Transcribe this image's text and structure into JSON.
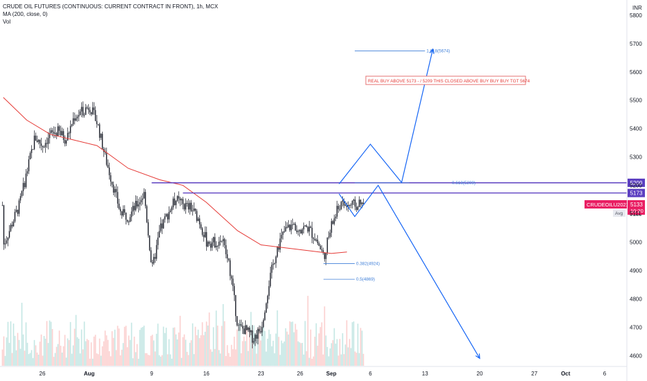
{
  "legend": {
    "symbol": "CRUDE OIL FUTURES (CONTINUOUS: CURRENT CONTRACT IN FRONT), 1h, MCX",
    "ma": "MA (200, close, 0)",
    "vol": "Vol"
  },
  "currency": "INR",
  "colors": {
    "up": "#26a69a",
    "down": "#ef5350",
    "candle": "#131722",
    "ma": "#e53935",
    "levels": "#5c3fc1",
    "projection": "#1565f5",
    "fib": "#3f7fd8",
    "tag_red": "#e91e63"
  },
  "chart_data": {
    "type": "candlestick",
    "title": "CRUDE OIL FUTURES (CONTINUOUS: CURRENT CONTRACT IN FRONT), 1h, MCX",
    "indicators": [
      "MA (200, close, 0)",
      "Vol"
    ],
    "y_range": [
      4550,
      5850
    ],
    "y_ticks": [
      5800,
      5700,
      5600,
      5500,
      5400,
      5300,
      5200,
      5100,
      5000,
      4900,
      4800,
      4700,
      4600
    ],
    "x_ticks": [
      "26",
      "Aug",
      "9",
      "16",
      "23",
      "26",
      "Sep",
      "6",
      "13",
      "20",
      "27",
      "Oct",
      "6"
    ],
    "grid": false,
    "price_path": [
      {
        "x": "Jul 21",
        "y": 4990
      },
      {
        "x": "Jul 22",
        "y": 5060
      },
      {
        "x": "Jul 23",
        "y": 5130
      },
      {
        "x": "Jul 24",
        "y": 5250
      },
      {
        "x": "Jul 25",
        "y": 5370
      },
      {
        "x": "Jul 26",
        "y": 5340
      },
      {
        "x": "Jul 27",
        "y": 5380
      },
      {
        "x": "Jul 28",
        "y": 5390
      },
      {
        "x": "Jul 29",
        "y": 5360
      },
      {
        "x": "Jul 30",
        "y": 5440
      },
      {
        "x": "Aug 1",
        "y": 5480
      },
      {
        "x": "Aug 2",
        "y": 5420
      },
      {
        "x": "Aug 3",
        "y": 5300
      },
      {
        "x": "Aug 4",
        "y": 5200
      },
      {
        "x": "Aug 5",
        "y": 5100
      },
      {
        "x": "Aug 6",
        "y": 5090
      },
      {
        "x": "Aug 7",
        "y": 5130
      },
      {
        "x": "Aug 8",
        "y": 5170
      },
      {
        "x": "Aug 9",
        "y": 4900
      },
      {
        "x": "Aug 10",
        "y": 5040
      },
      {
        "x": "Aug 11",
        "y": 5100
      },
      {
        "x": "Aug 12",
        "y": 5150
      },
      {
        "x": "Aug 13",
        "y": 5130
      },
      {
        "x": "Aug 14",
        "y": 5120
      },
      {
        "x": "Aug 15",
        "y": 5080
      },
      {
        "x": "Aug 16",
        "y": 5000
      },
      {
        "x": "Aug 17",
        "y": 5000
      },
      {
        "x": "Aug 18",
        "y": 5010
      },
      {
        "x": "Aug 19",
        "y": 4900
      },
      {
        "x": "Aug 20",
        "y": 4700
      },
      {
        "x": "Aug 21",
        "y": 4690
      },
      {
        "x": "Aug 22",
        "y": 4660
      },
      {
        "x": "Aug 23",
        "y": 4700
      },
      {
        "x": "Aug 24",
        "y": 4860
      },
      {
        "x": "Aug 25",
        "y": 4980
      },
      {
        "x": "Aug 26",
        "y": 5040
      },
      {
        "x": "Aug 27",
        "y": 5060
      },
      {
        "x": "Aug 28",
        "y": 5050
      },
      {
        "x": "Aug 29",
        "y": 5050
      },
      {
        "x": "Aug 30",
        "y": 5010
      },
      {
        "x": "Aug 31",
        "y": 4950
      },
      {
        "x": "Sep 1",
        "y": 5060
      },
      {
        "x": "Sep 2",
        "y": 5130
      }
    ],
    "ma_path": [
      {
        "x": "Jul 21",
        "y": 5510
      },
      {
        "x": "Jul 24",
        "y": 5430
      },
      {
        "x": "Jul 27",
        "y": 5380
      },
      {
        "x": "Jul 30",
        "y": 5360
      },
      {
        "x": "Aug 2",
        "y": 5340
      },
      {
        "x": "Aug 6",
        "y": 5260
      },
      {
        "x": "Aug 10",
        "y": 5220
      },
      {
        "x": "Aug 13",
        "y": 5200
      },
      {
        "x": "Aug 16",
        "y": 5140
      },
      {
        "x": "Aug 20",
        "y": 5040
      },
      {
        "x": "Aug 23",
        "y": 4990
      },
      {
        "x": "Aug 26",
        "y": 4980
      },
      {
        "x": "Aug 29",
        "y": 4970
      },
      {
        "x": "Sep 1",
        "y": 4960
      },
      {
        "x": "Sep 3",
        "y": 4965
      }
    ],
    "levels": [
      {
        "label": "5209",
        "value": 5209,
        "from": "Aug 9"
      },
      {
        "label": "5173",
        "value": 5173,
        "from": "Aug 13"
      }
    ],
    "fib_levels": [
      {
        "label": "1.618(5674)",
        "value": 5674,
        "from": "Sep 4",
        "to": "Sep 13"
      },
      {
        "label": "0.618(5209)",
        "value": 5209,
        "from": "Sep 4",
        "to": "Sep 11"
      },
      {
        "label": "0.382(4924)",
        "value": 4924,
        "from": "Aug 31",
        "to": "Sep 4"
      },
      {
        "label": "0.5(4869)",
        "value": 4869,
        "from": "Aug 31",
        "to": "Sep 4"
      }
    ],
    "annotation": "REAL BUY ABOVE 5173 - / 5209 THIS CLOSED ABOVE BUY BUY BUY  TGT 5674",
    "projection_up": [
      {
        "x": "Sep 2",
        "y": 5205
      },
      {
        "x": "Sep 6",
        "y": 5345
      },
      {
        "x": "Sep 10",
        "y": 5210
      },
      {
        "x": "Sep 14",
        "y": 5680
      }
    ],
    "projection_down": [
      {
        "x": "Sep 2",
        "y": 5170
      },
      {
        "x": "Sep 4",
        "y": 5090
      },
      {
        "x": "Sep 7",
        "y": 5200
      },
      {
        "x": "Sep 20",
        "y": 4590
      }
    ],
    "current": {
      "label": "CRUDEOILU2021",
      "price": "5133",
      "time": "10:20",
      "value": 5133
    },
    "avg": {
      "label": "Avg",
      "price": "5111",
      "value": 5111
    }
  }
}
